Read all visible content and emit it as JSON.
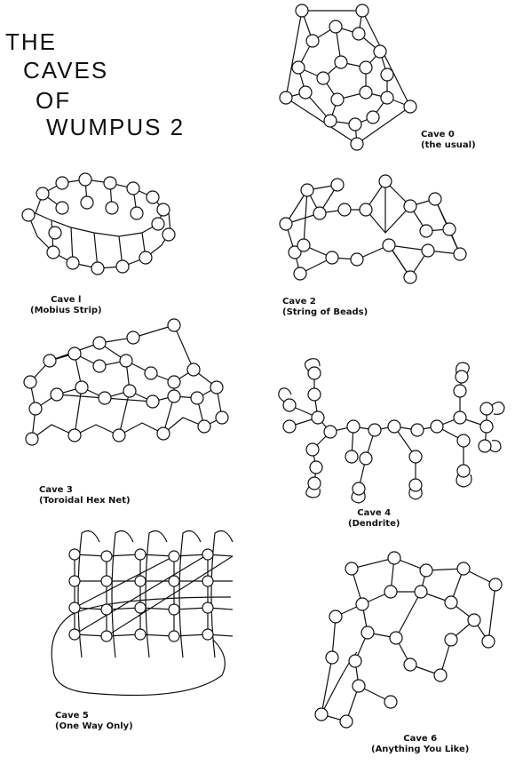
{
  "title": {
    "lines": [
      "THE",
      "CAVES",
      "OF",
      "WUMPUS 2"
    ]
  },
  "caves": [
    {
      "name": "Cave 0",
      "subtitle": "(the usual)"
    },
    {
      "name": "Cave l",
      "subtitle": "(Mobius Strip)"
    },
    {
      "name": "Cave 2",
      "subtitle": "(String of Beads)"
    },
    {
      "name": "Cave 3",
      "subtitle": "(Toroidal Hex Net)"
    },
    {
      "name": "Cave 4",
      "subtitle": "(Dendrite)"
    },
    {
      "name": "Cave 5",
      "subtitle": "(One Way Only)"
    },
    {
      "name": "Cave 6",
      "subtitle": "(Anything You Like)"
    }
  ]
}
